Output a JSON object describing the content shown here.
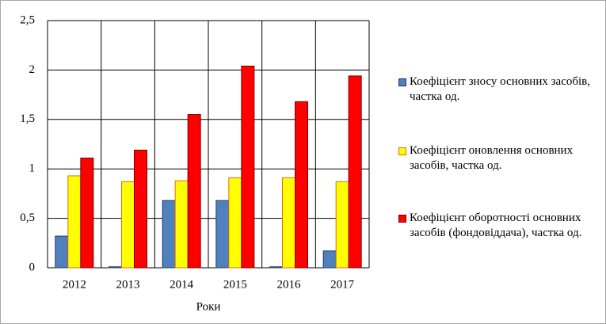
{
  "chart_data": {
    "type": "bar",
    "x_label": "Роки",
    "categories": [
      "2012",
      "2013",
      "2014",
      "2015",
      "2016",
      "2017"
    ],
    "series": [
      {
        "name": "Коефіцієнт зносу основних засобів, частка од.",
        "color": "#4f81bd",
        "values": [
          0.32,
          0.01,
          0.68,
          0.68,
          0.01,
          0.17
        ]
      },
      {
        "name": "Коефіцієнт оновлення основних засобів, частка од.",
        "color": "#ffff00",
        "values": [
          0.93,
          0.87,
          0.88,
          0.91,
          0.91,
          0.87
        ]
      },
      {
        "name": "Коефіцієнт оборотності основних засобів (фондовіддача), частка од.",
        "color": "#ff0000",
        "values": [
          1.11,
          1.19,
          1.55,
          2.04,
          1.68,
          1.94
        ]
      }
    ],
    "ylim": [
      0,
      2.5
    ],
    "yticks": [
      0,
      {
        "value": 0.5,
        "label": "0,5"
      },
      1,
      {
        "value": 1.5,
        "label": "1,5"
      },
      2,
      {
        "value": 2.5,
        "label": "2,5"
      }
    ],
    "grid": true,
    "legend": "right"
  }
}
